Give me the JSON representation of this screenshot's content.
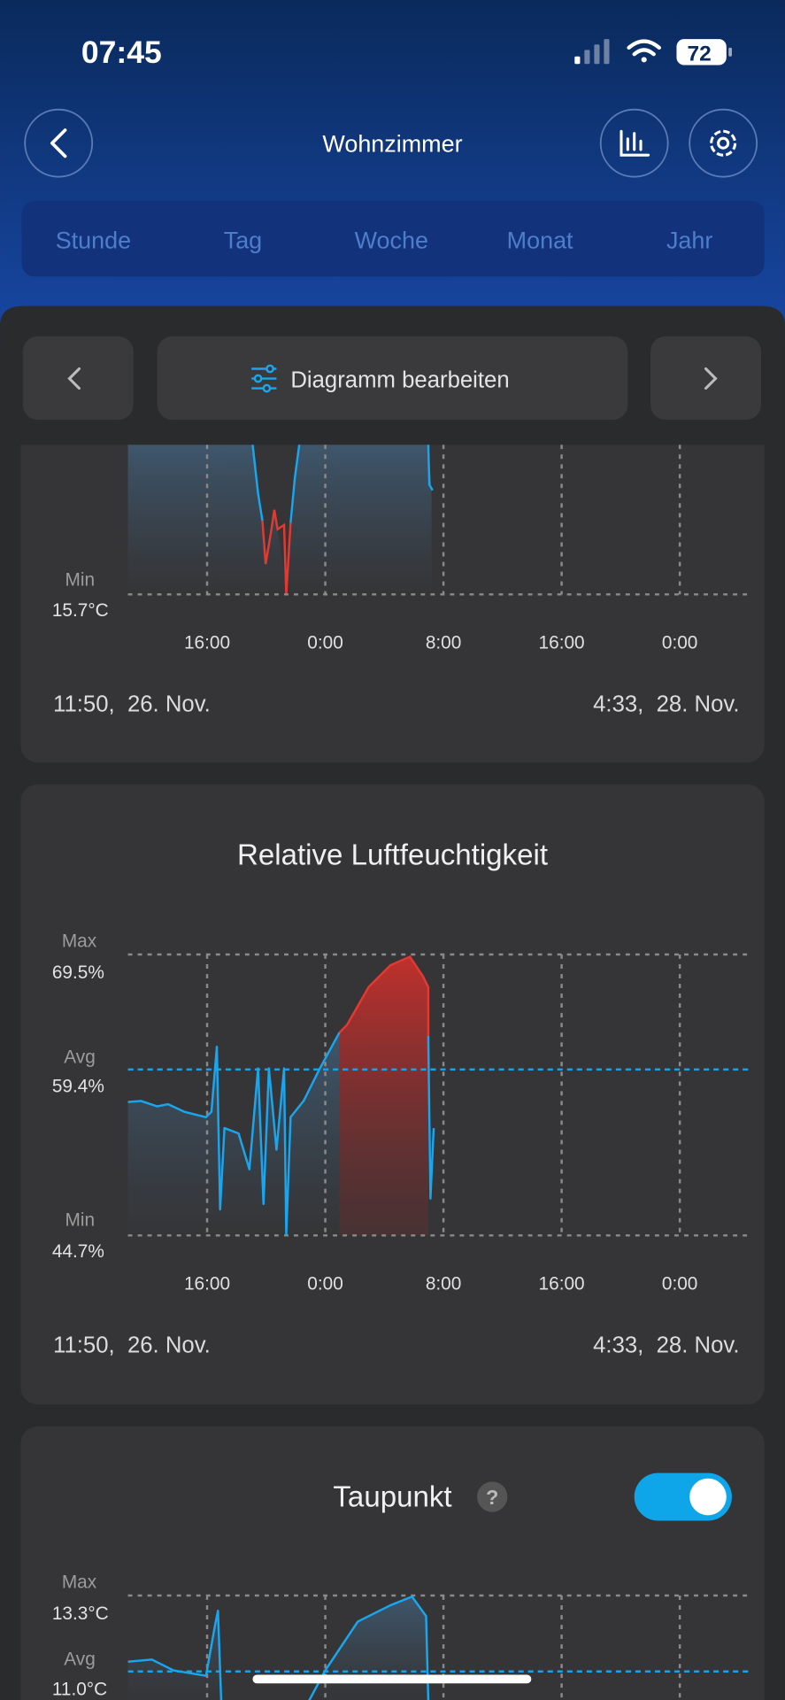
{
  "status_bar": {
    "time": "07:45",
    "battery": "72"
  },
  "header": {
    "title": "Wohnzimmer"
  },
  "tabs": [
    "Stunde",
    "Tag",
    "Woche",
    "Monat",
    "Jahr"
  ],
  "toolbar": {
    "edit_button": "Diagramm bearbeiten"
  },
  "cards": [
    {
      "min_label": "Min",
      "min_value": "15.7°C",
      "x_labels": [
        "16:00",
        "0:00",
        "8:00",
        "16:00",
        "0:00"
      ],
      "start": "11:50,  26. Nov.",
      "end": "4:33,  28. Nov."
    },
    {
      "title": "Relative Luftfeuchtigkeit",
      "max_label": "Max",
      "max_value": "69.5%",
      "avg_label": "Avg",
      "avg_value": "59.4%",
      "min_label": "Min",
      "min_value": "44.7%",
      "x_labels": [
        "16:00",
        "0:00",
        "8:00",
        "16:00",
        "0:00"
      ],
      "start": "11:50,  26. Nov.",
      "end": "4:33,  28. Nov."
    },
    {
      "title": "Taupunkt",
      "help": "?",
      "max_label": "Max",
      "max_value": "13.3°C",
      "avg_label": "Avg",
      "avg_value": "11.0°C"
    }
  ]
}
